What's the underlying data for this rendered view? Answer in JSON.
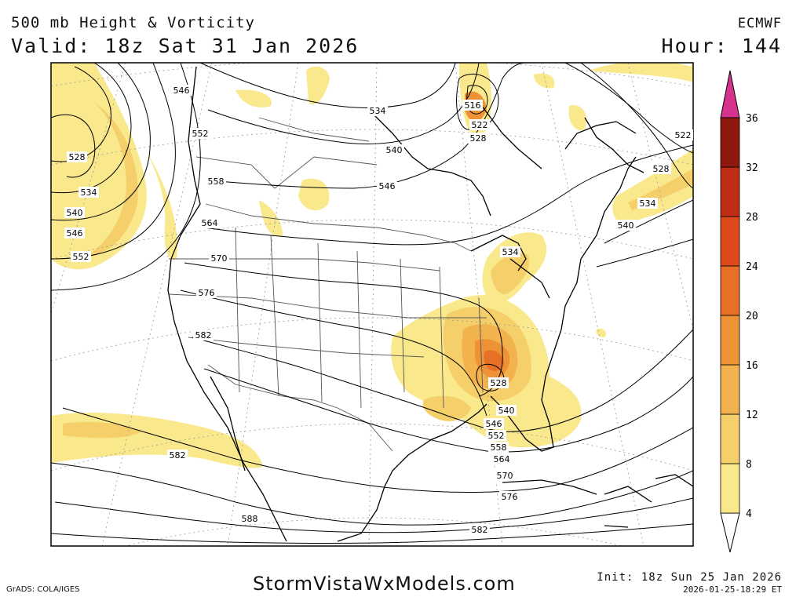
{
  "header": {
    "title": "500 mb Height & Vorticity",
    "valid": "Valid: 18z Sat 31 Jan 2026",
    "model": "ECMWF",
    "hour": "Hour: 144"
  },
  "footer": {
    "software": "GrADS: COLA/IGES",
    "website": "StormVistaWxModels.com",
    "init": "Init: 18z Sun 25 Jan 2026",
    "timestamp": "2026-01-25-18:29 ET"
  },
  "colorbar": {
    "levels": [
      "4",
      "8",
      "12",
      "16",
      "20",
      "24",
      "28",
      "32",
      "36"
    ],
    "colors": [
      "#f9e98c",
      "#f5cf6a",
      "#f2b24e",
      "#ee9236",
      "#e86f26",
      "#dc4a1c",
      "#c02c14",
      "#8f1810",
      "#d6338e"
    ]
  },
  "contour_labels": {
    "west": [
      "528",
      "534",
      "540",
      "546",
      "552"
    ],
    "north": [
      "546",
      "552",
      "558",
      "564",
      "570",
      "576",
      "582"
    ],
    "hudson": [
      "534",
      "540",
      "546"
    ],
    "baffin": [
      "516",
      "522",
      "528"
    ],
    "east_atlantic": [
      "522",
      "528",
      "534",
      "540"
    ],
    "great_lakes": [
      "534"
    ],
    "trough": [
      "528",
      "540",
      "546",
      "552",
      "558",
      "564",
      "570",
      "576",
      "582",
      "588"
    ],
    "pacific": [
      "582"
    ]
  }
}
